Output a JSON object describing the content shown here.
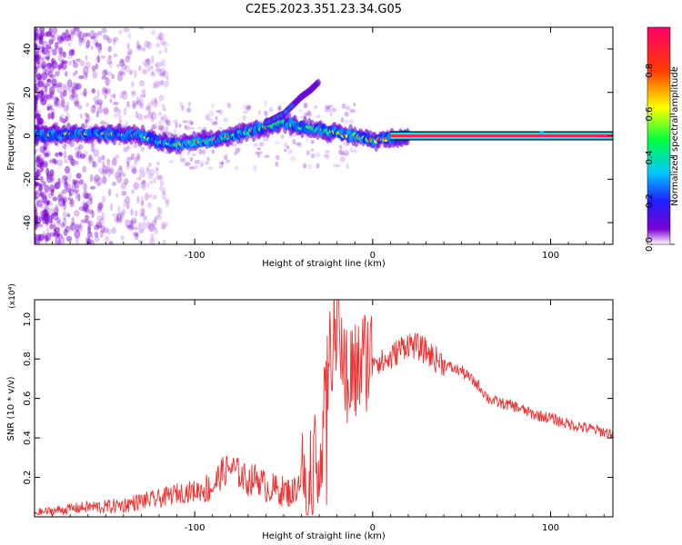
{
  "title": "C2E5.2023.351.23.34.G05",
  "chart_data": [
    {
      "type": "heatmap",
      "title": "C2E5.2023.351.23.34.G05",
      "xlabel": "Height of straight line (km)",
      "ylabel": "Frequency (Hz)",
      "xlim": [
        -190,
        135
      ],
      "ylim": [
        -50,
        50
      ],
      "x_ticks": [
        -100,
        0,
        100
      ],
      "y_ticks": [
        -40,
        -20,
        0,
        20,
        40
      ],
      "colorbar": {
        "label": "Normalized spectral amplitude",
        "range": [
          0.0,
          1.0
        ],
        "ticks": [
          "0.0",
          "0.2",
          "0.4",
          "0.6",
          "0.8"
        ],
        "colormap": "rainbow",
        "colors": [
          "#ffffff",
          "#7b00d4",
          "#1f1fff",
          "#00c8ff",
          "#00ff40",
          "#ffff00",
          "#ff3a00",
          "#ff006a"
        ]
      },
      "ridge": {
        "description": "dominant frequency line vs height",
        "x": [
          -190,
          -170,
          -150,
          -130,
          -120,
          -110,
          -100,
          -90,
          -80,
          -70,
          -60,
          -50,
          -40,
          -30,
          -20,
          -10,
          0,
          10,
          20,
          40,
          60,
          80,
          100,
          120,
          135
        ],
        "freq": [
          0,
          1,
          1,
          0,
          -3,
          -4,
          -3,
          -2,
          0,
          2,
          4,
          6,
          4,
          3,
          1,
          0,
          -2,
          -1,
          0,
          0,
          0,
          0,
          0,
          0,
          0
        ],
        "amplitude": [
          0.1,
          0.15,
          0.3,
          0.35,
          0.4,
          0.45,
          0.45,
          0.45,
          0.5,
          0.55,
          0.6,
          0.6,
          0.6,
          0.65,
          0.75,
          0.8,
          0.85,
          0.9,
          1.0,
          1.0,
          1.0,
          1.0,
          1.0,
          1.0,
          1.0
        ]
      },
      "branch": {
        "description": "secondary rising branch",
        "x": [
          -60,
          -50,
          -45,
          -40,
          -35,
          -30
        ],
        "freq": [
          6,
          10,
          14,
          18,
          21,
          25
        ]
      }
    },
    {
      "type": "line",
      "xlabel": "Height of straight line (km)",
      "ylabel": "SNR (10 * v/v)",
      "y_multiplier": "(x10⁴)",
      "xlim": [
        -190,
        135
      ],
      "ylim": [
        0,
        1.1
      ],
      "x_ticks": [
        -100,
        0,
        100
      ],
      "y_ticks": [
        0.2,
        0.4,
        0.6,
        0.8,
        1.0
      ],
      "y_tick_labels": [
        "0.2",
        "0.4",
        "0.6",
        "0.8",
        "1.0"
      ],
      "series": [
        {
          "color": "#ee3333",
          "x": [
            -190,
            -180,
            -170,
            -160,
            -150,
            -140,
            -130,
            -120,
            -110,
            -100,
            -90,
            -85,
            -80,
            -75,
            -70,
            -65,
            -60,
            -55,
            -50,
            -45,
            -40,
            -35,
            -30,
            -27,
            -25,
            -23,
            -20,
            -17,
            -15,
            -10,
            -5,
            0,
            5,
            10,
            15,
            20,
            25,
            30,
            35,
            40,
            45,
            50,
            55,
            60,
            65,
            70,
            75,
            80,
            90,
            100,
            110,
            120,
            130,
            135
          ],
          "y": [
            0.02,
            0.03,
            0.04,
            0.05,
            0.05,
            0.06,
            0.08,
            0.09,
            0.12,
            0.13,
            0.15,
            0.22,
            0.25,
            0.22,
            0.18,
            0.2,
            0.15,
            0.14,
            0.13,
            0.12,
            0.2,
            0.25,
            0.35,
            0.5,
            0.7,
            0.9,
            0.95,
            0.85,
            0.75,
            0.72,
            0.8,
            0.82,
            0.78,
            0.8,
            0.85,
            0.88,
            0.86,
            0.84,
            0.8,
            0.78,
            0.75,
            0.74,
            0.7,
            0.66,
            0.6,
            0.58,
            0.57,
            0.56,
            0.52,
            0.5,
            0.47,
            0.45,
            0.43,
            0.42
          ]
        }
      ]
    }
  ]
}
